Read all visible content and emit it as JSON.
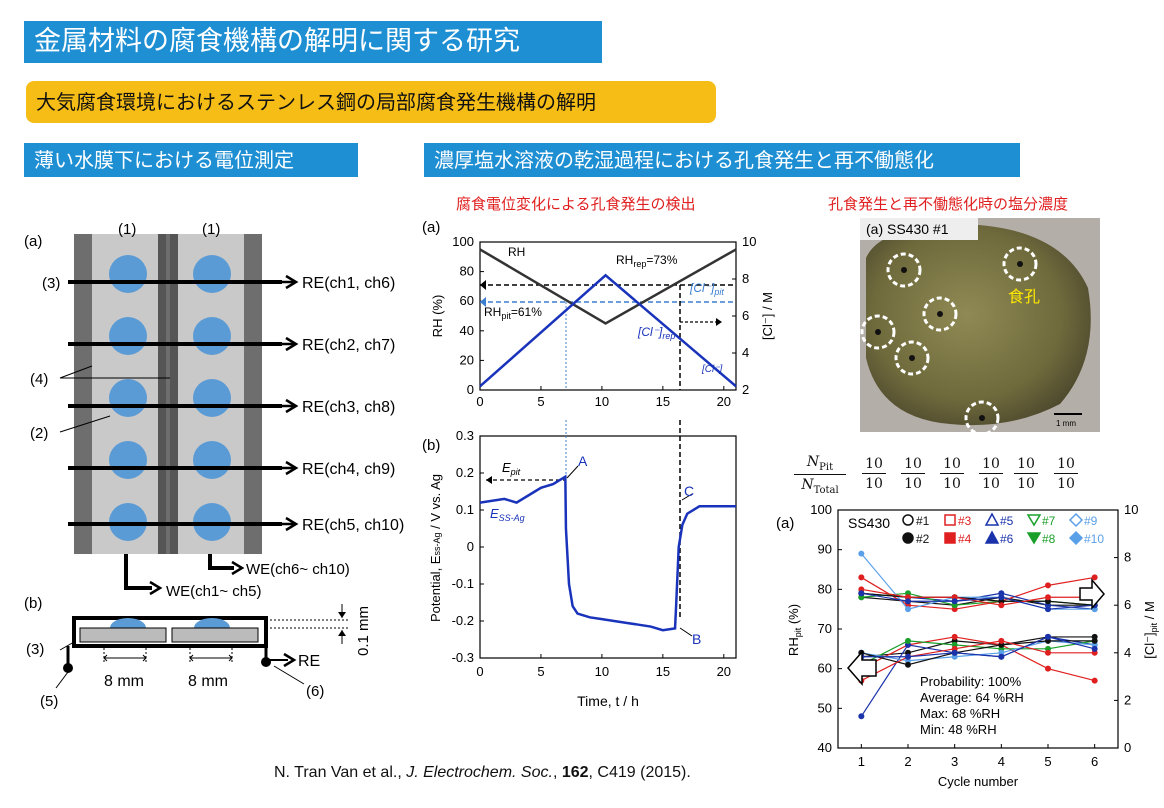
{
  "header": {
    "title": "金属材料の腐食機構の解明に関する研究",
    "subtitle": "大気腐食環境におけるステンレス鋼の局部腐食発生機構の解明"
  },
  "sections": {
    "left": "薄い水膜下における電位測定",
    "right": "濃厚塩水溶液の乾湿過程における孔食発生と再不働態化"
  },
  "captions": {
    "corrosion_potential": "腐食電位変化による孔食発生の検出",
    "chloride": "孔食発生と再不働態化時の塩分濃度"
  },
  "electrode_diagram": {
    "label_a": "(a)",
    "label_b": "(b)",
    "label_1a": "(1)",
    "label_1b": "(1)",
    "label_2": "(2)",
    "label_3": "(3)",
    "label_4": "(4)",
    "label_3b": "(3)",
    "label_5": "(5)",
    "label_6": "(6)",
    "re_channels": [
      "RE(ch1, ch6)",
      "RE(ch2, ch7)",
      "RE(ch3, ch8)",
      "RE(ch4, ch9)",
      "RE(ch5, ch10)"
    ],
    "we1": "WE(ch1~ ch5)",
    "we2": "WE(ch6~ ch10)",
    "re": "RE",
    "gap": "0.1 mm",
    "dim1": "8 mm",
    "dim2": "8 mm"
  },
  "photo": {
    "label": "(a) SS430 #1",
    "pit_label": "食孔",
    "scale": "1 mm"
  },
  "fractions": {
    "num_label": "N",
    "num_sub": "Pit",
    "den_label": "N",
    "den_sub": "Total",
    "values": [
      {
        "n": "10",
        "d": "10"
      },
      {
        "n": "10",
        "d": "10"
      },
      {
        "n": "10",
        "d": "10"
      },
      {
        "n": "10",
        "d": "10"
      },
      {
        "n": "10",
        "d": "10"
      },
      {
        "n": "10",
        "d": "10"
      }
    ]
  },
  "chart_data": [
    {
      "type": "line",
      "panel": "(a)",
      "xlabel": "",
      "ylabel": "RH (%)",
      "y2label": "[Cl⁻] / M",
      "xlim": [
        0,
        21
      ],
      "ylim": [
        0,
        100
      ],
      "y2lim": [
        2,
        10
      ],
      "xticks": [
        0,
        5,
        10,
        15,
        20
      ],
      "yticks": [
        0,
        20,
        40,
        60,
        80,
        100
      ],
      "y2ticks": [
        2,
        4,
        6,
        8,
        10
      ],
      "series": [
        {
          "name": "RH",
          "x": [
            0,
            10.3,
            21
          ],
          "y": [
            95,
            45,
            95
          ]
        },
        {
          "name": "[Cl⁻]",
          "x": [
            0,
            10.3,
            21
          ],
          "y": [
            2.2,
            8.2,
            2.2
          ]
        }
      ],
      "annotations": {
        "rh": "RH",
        "rh_rep": "RH",
        "rh_rep_sub": "rep",
        "rh_rep_val": "=73%",
        "rh_pit": "RH",
        "rh_pit_sub": "pit",
        "rh_pit_val": "=61%",
        "cl_pit": "[Cl⁻]",
        "cl_pit_sub": "pit",
        "cl_rep": "[Cl⁻]",
        "cl_rep_sub": "rep",
        "cl": "[Cl⁻]"
      }
    },
    {
      "type": "line",
      "panel": "(b)",
      "xlabel": "Time, t / h",
      "ylabel": "Potential, E",
      "ylabel_sub": "ss-Ag",
      "ylabel_tail": " / V vs. Ag",
      "xlim": [
        0,
        21
      ],
      "ylim": [
        -0.3,
        0.3
      ],
      "xticks": [
        0,
        5,
        10,
        15,
        20
      ],
      "yticks": [
        -0.3,
        -0.2,
        -0.1,
        0,
        0.1,
        0.2,
        0.3
      ],
      "series": [
        {
          "name": "E_SS-Ag",
          "x": [
            0,
            2,
            3,
            4.5,
            5,
            6,
            7,
            7.05,
            7.3,
            7.6,
            8,
            9,
            10,
            11,
            12,
            13,
            14,
            15,
            16,
            16.1,
            16.3,
            16.6,
            17,
            18,
            19,
            19.5,
            20,
            21
          ],
          "y": [
            0.12,
            0.13,
            0.12,
            0.15,
            0.16,
            0.17,
            0.19,
            0.05,
            -0.1,
            -0.16,
            -0.18,
            -0.19,
            -0.195,
            -0.2,
            -0.205,
            -0.21,
            -0.215,
            -0.225,
            -0.22,
            -0.15,
            0.0,
            0.06,
            0.09,
            0.11,
            0.11,
            0.11,
            0.11,
            0.11
          ]
        }
      ],
      "annotations": {
        "e_pit": "E",
        "e_pit_sub": "pit",
        "e_ss": "E",
        "e_ss_sub": "SS-Ag",
        "A": "A",
        "B": "B",
        "C": "C"
      }
    },
    {
      "type": "line",
      "panel": "(a)",
      "title": "SS430",
      "xlabel": "Cycle number",
      "ylabel": "RH",
      "ylabel_sub": "pit",
      "ylabel_tail": " (%)",
      "y2label": "[Cl⁻]",
      "y2label_sub": "pit",
      "y2label_tail": " / M",
      "xlim": [
        0.5,
        6.5
      ],
      "ylim": [
        40,
        100
      ],
      "y2lim": [
        0,
        10
      ],
      "xticks": [
        1,
        2,
        3,
        4,
        5,
        6
      ],
      "yticks": [
        40,
        50,
        60,
        70,
        80,
        90,
        100
      ],
      "y2ticks": [
        0,
        2,
        4,
        6,
        8,
        10
      ],
      "legend": [
        "#1",
        "#2",
        "#3",
        "#4",
        "#5",
        "#6",
        "#7",
        "#8",
        "#9",
        "#10"
      ],
      "legend_colors": [
        "#111111",
        "#111111",
        "#e02020",
        "#e02020",
        "#1a33aa",
        "#1a33aa",
        "#1aa02a",
        "#1aa02a",
        "#5aa0e8",
        "#5aa0e8"
      ],
      "upper_series": [
        {
          "name": "#1",
          "values": [
            78,
            77,
            76,
            78,
            76,
            76
          ]
        },
        {
          "name": "#3",
          "values": [
            83,
            76,
            75,
            77,
            81,
            83
          ]
        },
        {
          "name": "#5",
          "values": [
            79,
            78,
            77,
            79,
            76,
            75
          ]
        },
        {
          "name": "#7",
          "values": [
            78,
            79,
            76,
            77,
            77,
            76
          ]
        },
        {
          "name": "#9",
          "values": [
            89,
            75,
            78,
            78,
            75,
            75
          ]
        },
        {
          "name": "#2",
          "values": [
            79,
            78,
            78,
            77,
            77,
            76
          ]
        },
        {
          "name": "#4",
          "values": [
            80,
            78,
            78,
            76,
            78,
            78
          ]
        },
        {
          "name": "#6",
          "values": [
            79,
            77,
            77,
            78,
            75,
            76
          ]
        }
      ],
      "lower_series": [
        {
          "name": "#1",
          "values": [
            63,
            64,
            67,
            66,
            68,
            68
          ]
        },
        {
          "name": "#3",
          "values": [
            60,
            66,
            68,
            66,
            60,
            57
          ]
        },
        {
          "name": "#5",
          "values": [
            48,
            66,
            64,
            63,
            68,
            66
          ]
        },
        {
          "name": "#7",
          "values": [
            61,
            67,
            66,
            65,
            65,
            67
          ]
        },
        {
          "name": "#9",
          "values": [
            64,
            62,
            63,
            64,
            67,
            66
          ]
        },
        {
          "name": "#2",
          "values": [
            64,
            61,
            64,
            66,
            67,
            67
          ]
        },
        {
          "name": "#4",
          "values": [
            57,
            63,
            65,
            67,
            64,
            64
          ]
        },
        {
          "name": "#6",
          "values": [
            63,
            63,
            64,
            63,
            68,
            65
          ]
        }
      ],
      "stats": [
        "Probability: 100%",
        "Average: 64 %RH",
        "Max: 68 %RH",
        "Min: 48 %RH"
      ]
    }
  ],
  "citation": {
    "authors": "N. Tran Van et al., ",
    "journal": "J. Electrochem. Soc.",
    "sep": ", ",
    "volume": "162",
    "rest": ", C419 (2015)."
  }
}
